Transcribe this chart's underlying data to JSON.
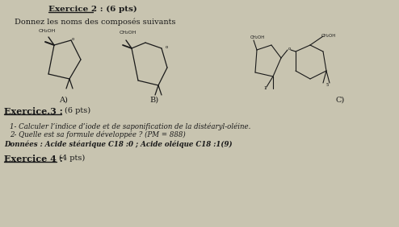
{
  "bg_color": "#c8c4b0",
  "title_line": "Exercice 2 : (6 pts)",
  "subtitle": "Donnez les noms des composés suivants",
  "label_A": "A)",
  "label_B": "B)",
  "label_C": "C)",
  "ex3_title": "Exercice.3 : (6 pts)",
  "ex3_line1": "1- Calculer l’indice d’iode et de saponification de la distéaryl-oléine.",
  "ex3_line2": "2- Quelle est sa formule développée ? (PM = 888)",
  "ex3_line3": "Données : Acide stéarique C18 :0 ; Acide oléique C18 :1(9)",
  "ex4_title": "Exercice 4 : (4 pts)",
  "text_color": "#1a1a1a",
  "struct_color": "#1a1a1a",
  "title_underline_color": "#1a1a1a"
}
